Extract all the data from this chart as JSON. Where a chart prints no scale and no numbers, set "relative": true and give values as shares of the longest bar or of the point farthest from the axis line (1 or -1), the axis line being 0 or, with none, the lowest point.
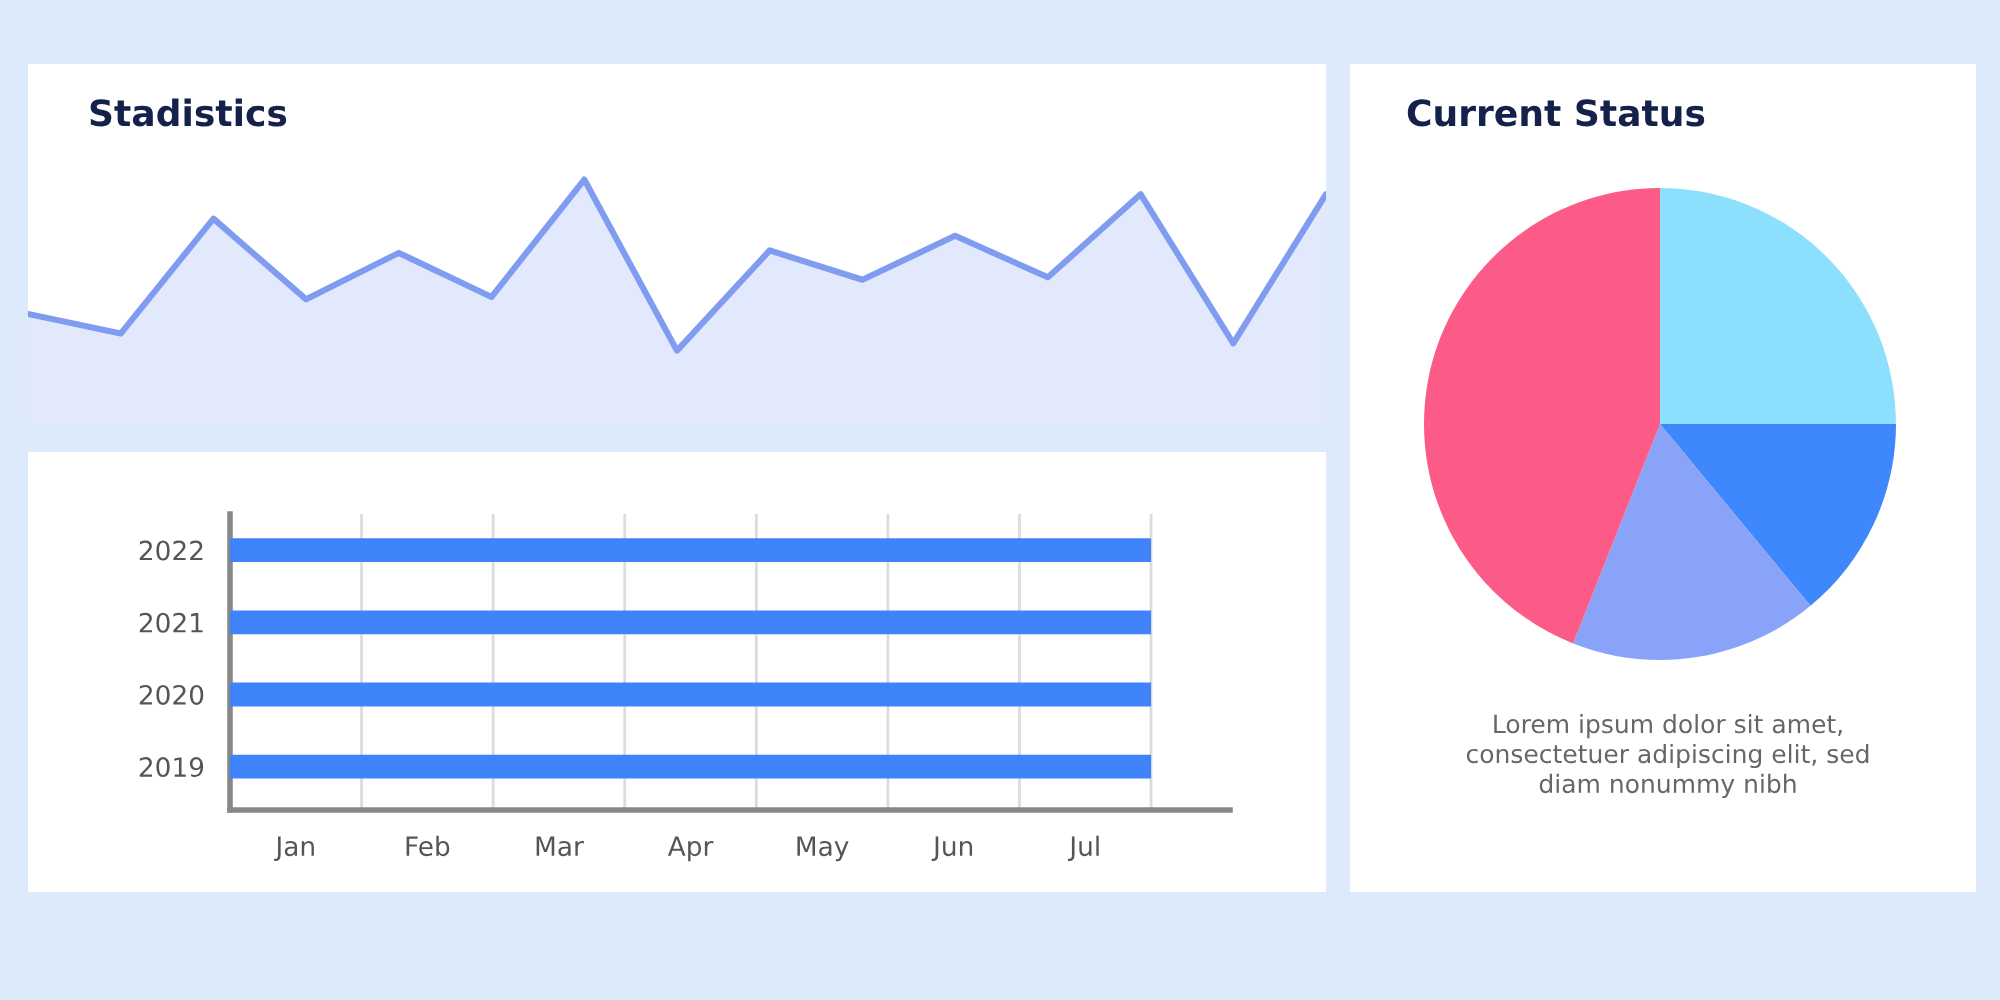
{
  "chart_data": [
    {
      "type": "area",
      "title": "Stadistics",
      "relative": true,
      "categories": [
        null,
        null,
        null,
        null,
        null,
        null,
        null,
        null,
        null,
        null,
        null,
        null,
        null,
        null,
        null
      ],
      "series": [
        {
          "color": "#7f9cf0",
          "values": [
            0.45,
            0.37,
            0.84,
            0.51,
            0.7,
            0.52,
            1,
            0.3,
            0.71,
            0.59,
            0.77,
            0.6,
            0.94,
            0.33,
            0.94
          ]
        }
      ]
    },
    {
      "type": "bar",
      "orientation": "horizontal",
      "categories": [
        "2022",
        "2021",
        "2020",
        "2019"
      ],
      "values": [
        1,
        1,
        1,
        1
      ],
      "color": "#3f83fb",
      "relative": true,
      "annotations": [
        "Jan",
        "Feb",
        "Mar",
        "Apr",
        "May",
        "Jun",
        "Jul"
      ],
      "grid": "x"
    },
    {
      "type": "pie",
      "title": "Current Status",
      "categories": [
        null,
        null,
        null,
        null
      ],
      "values": [
        25,
        14,
        17,
        44
      ],
      "colors": [
        "#8de0fd",
        "#3f87fc",
        "#88a3f8",
        "#fd5b87"
      ],
      "annotations": [
        "Lorem ipsum dolor sit amet,\nconsectetuer adipiscing elit, sed\ndiam nonummy nibh"
      ]
    }
  ]
}
